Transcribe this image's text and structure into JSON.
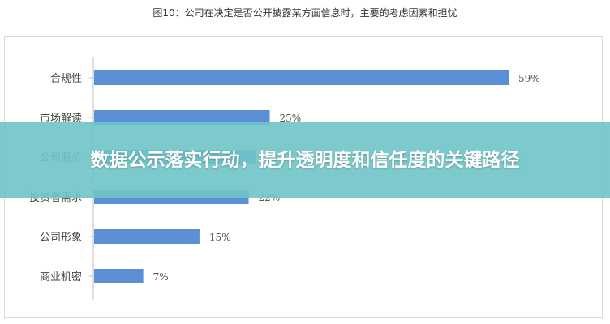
{
  "figure_title": "图10：公司在决定是否公开披露某方面信息时，主要的考虑因素和担忧",
  "banner": {
    "text": "数据公示落实行动，提升透明度和信任度的关键路径"
  },
  "colors": {
    "bar": "#5b8fd6",
    "banner_bg": "#6fc4c7",
    "axis": "#bfbfbf"
  },
  "chart_data": {
    "type": "bar",
    "orientation": "horizontal",
    "title": "图10：公司在决定是否公开披露某方面信息时，主要的考虑因素和担忧",
    "categories": [
      "合规性",
      "市场解读",
      "公司股价",
      "投资者需求",
      "公司形象",
      "商业机密"
    ],
    "values": [
      59,
      25,
      23,
      22,
      15,
      7
    ],
    "value_labels": [
      "59%",
      "25%",
      "23%",
      "22%",
      "15%",
      "7%"
    ],
    "xlim": [
      0,
      100
    ],
    "grid": false,
    "legend": "none"
  }
}
